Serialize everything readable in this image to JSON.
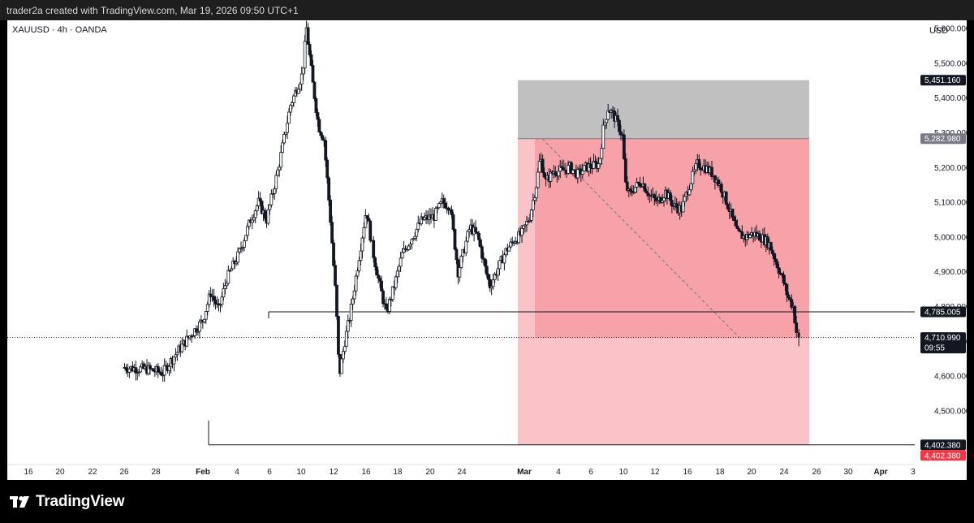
{
  "header": {
    "caption": "trader2a created with TradingView.com, Mar 19, 2026 09:50 UTC+1"
  },
  "symbol_line": "XAUUSD · 4h · OANDA",
  "currency": "USD",
  "footer": {
    "brand": "TradingView"
  },
  "colors": {
    "candle": "#131722",
    "stop_zone": "#9e9e9e",
    "target_zone_dark": "#f7a1a8",
    "target_zone_light": "#fac3c8",
    "stop_label_bg": "#131722",
    "entry_label_bg": "#787b86",
    "target_red_label": "#f23645"
  },
  "chart_data": {
    "type": "candlestick",
    "title": "XAUUSD · 4h · OANDA",
    "y_axis_unit": "USD",
    "ylim": [
      4340,
      5640
    ],
    "x_labels": [
      "16",
      "20",
      "22",
      "26",
      "28",
      "Feb",
      "4",
      "6",
      "10",
      "12",
      "16",
      "18",
      "20",
      "24",
      "Mar",
      "4",
      "6",
      "10",
      "12",
      "16",
      "18",
      "20",
      "24",
      "26",
      "30",
      "Apr",
      "3"
    ],
    "y_ticks": [
      "4,500.000",
      "4,600.000",
      "4,700.000",
      "4,800.000",
      "4,900.000",
      "5,000.000",
      "5,100.000",
      "5,200.000",
      "5,300.000",
      "5,400.000",
      "5,500.000",
      "5,600.000"
    ],
    "price_path": [
      [
        0,
        4625
      ],
      [
        3,
        4620
      ],
      [
        5,
        4610
      ],
      [
        6.5,
        4660
      ],
      [
        8,
        4705
      ],
      [
        10,
        4760
      ],
      [
        11,
        4840
      ],
      [
        12,
        4790
      ],
      [
        13,
        4880
      ],
      [
        14.5,
        4950
      ],
      [
        16,
        5050
      ],
      [
        17,
        5100
      ],
      [
        18,
        5050
      ],
      [
        19.5,
        5200
      ],
      [
        21,
        5380
      ],
      [
        22.5,
        5470
      ],
      [
        23,
        5600
      ],
      [
        23.8,
        5440
      ],
      [
        24.5,
        5320
      ],
      [
        25.2,
        5280
      ],
      [
        26,
        5050
      ],
      [
        26.7,
        4820
      ],
      [
        27.1,
        4600
      ],
      [
        27.8,
        4700
      ],
      [
        28.5,
        4780
      ],
      [
        29.5,
        4930
      ],
      [
        30.5,
        5080
      ],
      [
        31.3,
        4960
      ],
      [
        32,
        4880
      ],
      [
        33,
        4780
      ],
      [
        34,
        4860
      ],
      [
        35,
        4950
      ],
      [
        36,
        4990
      ],
      [
        37.5,
        5050
      ],
      [
        39,
        5060
      ],
      [
        40,
        5100
      ],
      [
        41,
        5090
      ],
      [
        42,
        4900
      ],
      [
        42.6,
        4950
      ],
      [
        43.5,
        5030
      ],
      [
        44.5,
        5000
      ],
      [
        45.5,
        4900
      ],
      [
        46,
        4860
      ],
      [
        47,
        4910
      ],
      [
        48,
        4960
      ],
      [
        49,
        4990
      ],
      [
        50,
        5010
      ],
      [
        51,
        5060
      ],
      [
        51.8,
        5150
      ],
      [
        52.3,
        5230
      ],
      [
        53,
        5160
      ],
      [
        54,
        5190
      ],
      [
        55,
        5190
      ],
      [
        56,
        5200
      ],
      [
        57,
        5180
      ],
      [
        58,
        5200
      ],
      [
        59.7,
        5210
      ],
      [
        60.2,
        5310
      ],
      [
        60.8,
        5370
      ],
      [
        61.5,
        5350
      ],
      [
        62.1,
        5320
      ],
      [
        62.6,
        5290
      ],
      [
        63,
        5150
      ],
      [
        63.5,
        5120
      ],
      [
        64,
        5140
      ],
      [
        65,
        5160
      ],
      [
        66,
        5120
      ],
      [
        67,
        5100
      ],
      [
        68,
        5130
      ],
      [
        69,
        5090
      ],
      [
        70,
        5080
      ],
      [
        71,
        5150
      ],
      [
        72,
        5210
      ],
      [
        73,
        5200
      ],
      [
        74,
        5180
      ],
      [
        75,
        5140
      ],
      [
        76,
        5080
      ],
      [
        77,
        5010
      ],
      [
        78,
        5000
      ],
      [
        79,
        5010
      ],
      [
        80,
        5000
      ],
      [
        81,
        4980
      ],
      [
        82,
        4920
      ],
      [
        82.8,
        4870
      ],
      [
        83.3,
        4830
      ],
      [
        84,
        4800
      ],
      [
        84.5,
        4710
      ]
    ],
    "position": {
      "direction": "short",
      "stop_loss": 5451.16,
      "entry": 5282.98,
      "take_profit": 4402.38,
      "range_start": "Mar",
      "range_end": "25"
    },
    "horizontal_lines": [
      {
        "price": 4785.005,
        "from": "Feb 6"
      },
      {
        "price": 4402.38,
        "from": "Feb 1"
      }
    ],
    "last_price": 4710.99,
    "countdown": "09:55",
    "price_labels": [
      "5,451.160",
      "5,282.980",
      "4,785.005",
      "4,710.990",
      "4,402.380",
      "4,402.380"
    ]
  }
}
